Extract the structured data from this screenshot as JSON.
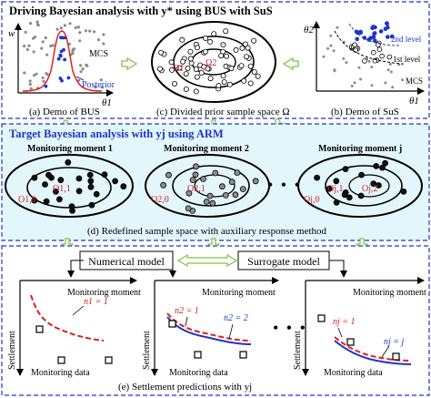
{
  "top": {
    "title": "Driving Bayesian analysis with y* using BUS with SuS",
    "panel_a": {
      "caption": "(a) Demo of BUS",
      "axis_y": "w",
      "axis_x": "θ1",
      "mcs_label": "MCS",
      "posterior_label": "Posterior"
    },
    "panel_c": {
      "caption": "(c) Divided prior sample space Ω",
      "omega_1": "Ω1",
      "omega_2": "Ω2"
    },
    "panel_b": {
      "caption": "(b) Demo of SuS",
      "axis_y": "θ2",
      "axis_x": "θ1",
      "level_2": "2nd level",
      "level_1": "1st level",
      "mcs_label": "MCS"
    }
  },
  "middle": {
    "title": "Target Bayesian analysis with yj using ARM",
    "moments": [
      {
        "label": "Monitoring moment 1",
        "inner": "O1,1",
        "outer": "O1,0"
      },
      {
        "label": "Monitoring moment 2",
        "inner": "O2,1",
        "outer": "O2,0"
      },
      {
        "label": "Monitoring moment j",
        "inner": "Oj,2",
        "outer": "Oj,1",
        "third": "Oj,0"
      }
    ],
    "dots": "• • •",
    "caption": "(d) Redefined sample space with auxiliary response method"
  },
  "bottom": {
    "numerical_model": "Numerical model",
    "surrogate_model": "Surrogate model",
    "plots": [
      {
        "moment_label": "Monitoring moment",
        "curve_labels": [
          "n1 = 1"
        ]
      },
      {
        "moment_label": "Monitoring moment",
        "curve_labels": [
          "n2 = 1",
          "n2 = 2"
        ]
      },
      {
        "moment_label": "Monitoring moment",
        "curve_labels": [
          "nj = 1",
          "nj = j"
        ]
      }
    ],
    "settlement_label": "Settlement",
    "monitoring_data_label": "Monitoring data",
    "dots": "• • •",
    "caption": "(e) Settlement predictions with yj"
  },
  "colors": {
    "frame_blue": "#1f35c8",
    "middle_bg": "#e3f6fb",
    "arrow_green": "#7fc241",
    "point_blue": "#1f35c8",
    "point_gray": "#8c8c8c",
    "curve_red": "#e0201c",
    "curve_blue": "#1f35c8"
  }
}
